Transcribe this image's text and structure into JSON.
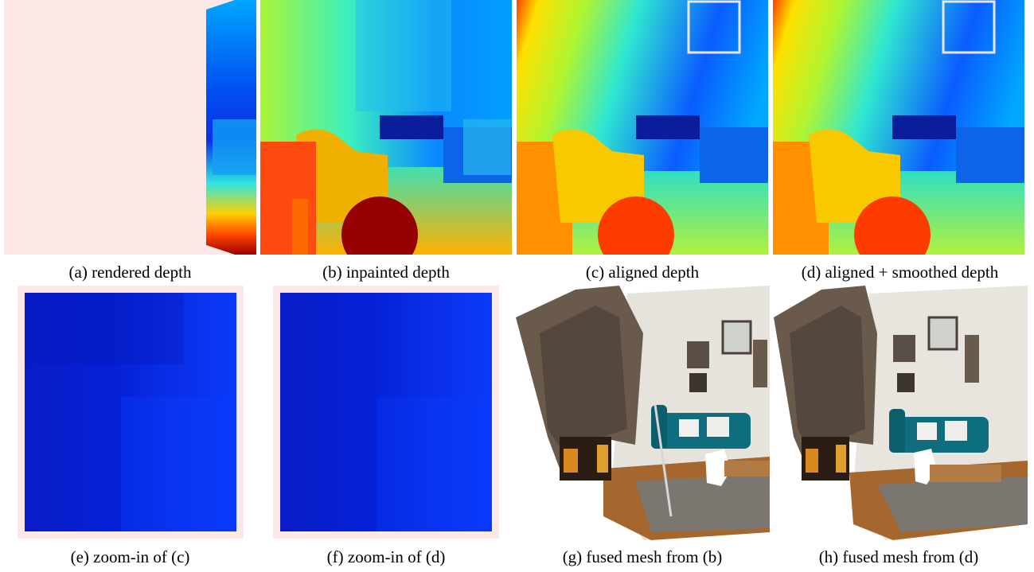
{
  "figure": {
    "captions": {
      "a": "(a) rendered depth",
      "b": "(b) inpainted depth",
      "c": "(c) aligned depth",
      "d": "(d) aligned + smoothed depth",
      "e": "(e) zoom-in of (c)",
      "f": "(f) zoom-in of (d)",
      "g": "(g) fused mesh from (b)",
      "h": "(h) fused mesh from (d)"
    },
    "colors": {
      "empty_region": "#fde8e8",
      "depth_near": "#c00000",
      "depth_mid": "#20e0e0",
      "depth_far": "#0010e0",
      "zoom_box": "#e6e6e6"
    }
  }
}
